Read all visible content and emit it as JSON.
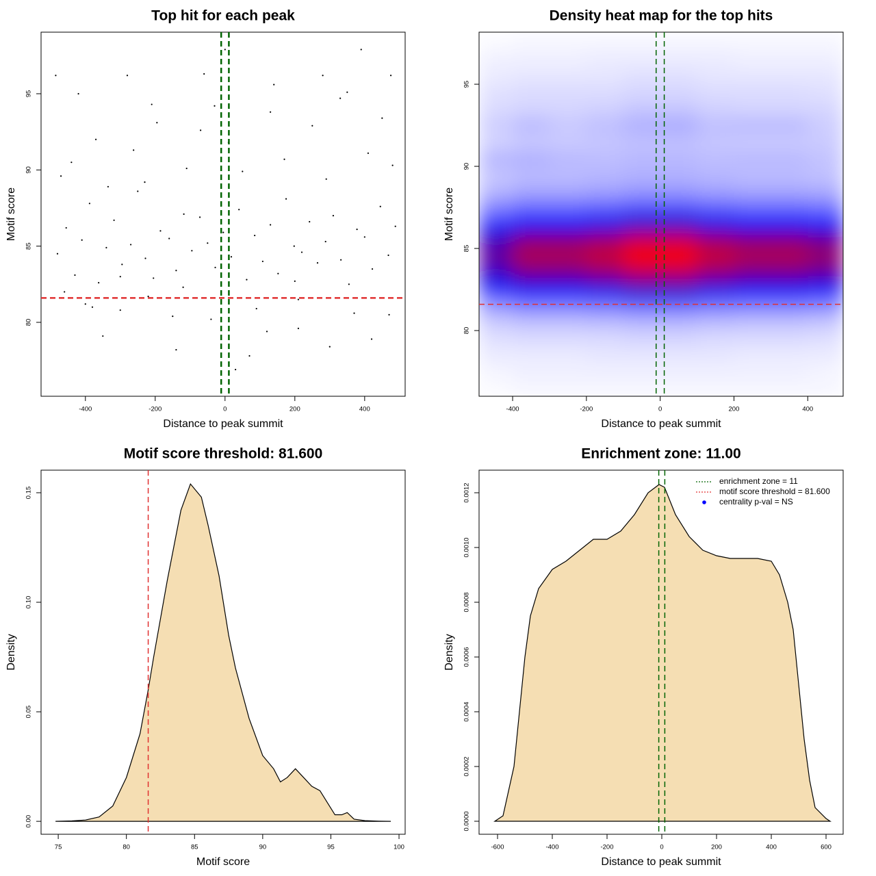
{
  "chart_data": [
    {
      "type": "scatter",
      "title": "Top hit for each peak",
      "xlabel": "Distance to peak summit",
      "ylabel": "Motif score",
      "xlim": [
        -527,
        516
      ],
      "ylim": [
        75.15,
        99.04
      ],
      "xticks": [
        -400,
        -200,
        0,
        200,
        400
      ],
      "yticks": [
        80,
        85,
        90,
        95
      ],
      "color": "#000000",
      "x": [
        -480,
        -455,
        -430,
        -410,
        -388,
        -362,
        -340,
        -318,
        -295,
        -270,
        -250,
        -228,
        -205,
        -185,
        -160,
        -140,
        -118,
        -95,
        -72,
        -50,
        -28,
        -5,
        18,
        40,
        62,
        85,
        108,
        130,
        152,
        175,
        198,
        220,
        242,
        265,
        288,
        310,
        332,
        355,
        378,
        400,
        422,
        445,
        468,
        488,
        -470,
        -440,
        -400,
        -370,
        -335,
        -300,
        -262,
        -230,
        -195,
        -150,
        -110,
        -70,
        -30,
        10,
        50,
        90,
        130,
        170,
        210,
        250,
        290,
        330,
        370,
        410,
        450,
        480,
        -485,
        -420,
        -350,
        -280,
        -210,
        -140,
        -60,
        0,
        70,
        140,
        210,
        280,
        350,
        420,
        475,
        -460,
        -380,
        -300,
        -220,
        -120,
        -40,
        30,
        120,
        200,
        300,
        390,
        470
      ],
      "values": [
        84.5,
        86.2,
        83.1,
        85.4,
        87.8,
        82.6,
        84.9,
        86.7,
        83.8,
        85.1,
        88.6,
        84.2,
        82.9,
        86.0,
        85.5,
        83.4,
        87.1,
        84.7,
        86.9,
        85.2,
        83.6,
        85.9,
        84.3,
        87.4,
        82.8,
        85.7,
        84.0,
        86.4,
        83.2,
        88.1,
        85.0,
        84.6,
        86.6,
        83.9,
        85.3,
        87.0,
        84.1,
        82.5,
        86.1,
        85.6,
        83.5,
        87.6,
        84.4,
        86.3,
        89.6,
        90.5,
        81.2,
        92.0,
        88.9,
        80.8,
        91.3,
        89.2,
        93.1,
        80.4,
        90.1,
        92.6,
        94.2,
        91.8,
        89.9,
        80.9,
        93.8,
        90.7,
        81.5,
        92.9,
        89.4,
        94.7,
        80.6,
        91.1,
        93.4,
        90.3,
        96.2,
        95.0,
        79.1,
        96.2,
        94.3,
        78.2,
        96.3,
        97.9,
        77.8,
        95.6,
        79.6,
        96.2,
        95.1,
        78.9,
        96.2,
        82.0,
        81.0,
        83.0,
        81.7,
        82.3,
        80.2,
        76.9,
        79.4,
        82.7,
        78.4,
        97.9,
        80.5
      ],
      "hlines": [
        {
          "value": 81.6,
          "color": "#e03030"
        }
      ],
      "vlines": [
        {
          "value": -11,
          "color": "#006400"
        },
        {
          "value": 11,
          "color": "#006400"
        }
      ]
    },
    {
      "type": "heatmap",
      "title": "Density heat map for the top hits",
      "xlabel": "Distance to peak summit",
      "ylabel": "Motif score",
      "xlim": [
        -491,
        496
      ],
      "ylim": [
        76,
        98.17
      ],
      "xticks": [
        -400,
        -200,
        0,
        200,
        400
      ],
      "yticks": [
        80,
        85,
        90,
        95
      ],
      "colors": [
        "#ffffff",
        "#0000ff",
        "#ff0000"
      ],
      "x_bins": [
        -491,
        -400,
        -300,
        -200,
        -100,
        0,
        100,
        200,
        300,
        400,
        496
      ],
      "y_bins": [
        76,
        77,
        78,
        79,
        80,
        81,
        82,
        83,
        84,
        85,
        86,
        87,
        88,
        89,
        90,
        91,
        92,
        93,
        94,
        95,
        96,
        97,
        98
      ],
      "z": [
        [
          0.01,
          0.02,
          0.02,
          0.02,
          0.02,
          0.02,
          0.02,
          0.02,
          0.02,
          0.02
        ],
        [
          0.02,
          0.03,
          0.03,
          0.03,
          0.03,
          0.03,
          0.03,
          0.03,
          0.03,
          0.02
        ],
        [
          0.04,
          0.04,
          0.04,
          0.05,
          0.05,
          0.05,
          0.05,
          0.04,
          0.04,
          0.04
        ],
        [
          0.06,
          0.07,
          0.07,
          0.07,
          0.08,
          0.08,
          0.07,
          0.07,
          0.07,
          0.06
        ],
        [
          0.1,
          0.12,
          0.12,
          0.13,
          0.14,
          0.14,
          0.13,
          0.12,
          0.12,
          0.11
        ],
        [
          0.21,
          0.26,
          0.26,
          0.27,
          0.3,
          0.3,
          0.27,
          0.26,
          0.26,
          0.24
        ],
        [
          0.42,
          0.51,
          0.51,
          0.54,
          0.6,
          0.6,
          0.54,
          0.51,
          0.51,
          0.48
        ],
        [
          0.6,
          0.72,
          0.72,
          0.77,
          0.85,
          0.85,
          0.77,
          0.72,
          0.72,
          0.68
        ],
        [
          0.7,
          0.85,
          0.85,
          0.9,
          1.0,
          1.0,
          0.9,
          0.85,
          0.85,
          0.8
        ],
        [
          0.63,
          0.77,
          0.77,
          0.81,
          0.9,
          0.9,
          0.81,
          0.77,
          0.77,
          0.72
        ],
        [
          0.42,
          0.51,
          0.51,
          0.54,
          0.6,
          0.6,
          0.54,
          0.51,
          0.51,
          0.48
        ],
        [
          0.25,
          0.3,
          0.3,
          0.32,
          0.35,
          0.35,
          0.32,
          0.3,
          0.3,
          0.28
        ],
        [
          0.14,
          0.17,
          0.17,
          0.18,
          0.2,
          0.2,
          0.18,
          0.17,
          0.17,
          0.16
        ],
        [
          0.11,
          0.13,
          0.13,
          0.14,
          0.15,
          0.15,
          0.14,
          0.13,
          0.13,
          0.12
        ],
        [
          0.15,
          0.16,
          0.14,
          0.13,
          0.14,
          0.14,
          0.13,
          0.14,
          0.14,
          0.12
        ],
        [
          0.08,
          0.1,
          0.1,
          0.11,
          0.12,
          0.12,
          0.11,
          0.1,
          0.1,
          0.1
        ],
        [
          0.1,
          0.14,
          0.11,
          0.13,
          0.16,
          0.17,
          0.13,
          0.14,
          0.14,
          0.1
        ],
        [
          0.07,
          0.08,
          0.08,
          0.09,
          0.11,
          0.11,
          0.09,
          0.08,
          0.08,
          0.08
        ],
        [
          0.06,
          0.07,
          0.07,
          0.07,
          0.08,
          0.08,
          0.07,
          0.07,
          0.07,
          0.06
        ],
        [
          0.04,
          0.05,
          0.05,
          0.05,
          0.06,
          0.06,
          0.05,
          0.05,
          0.05,
          0.05
        ],
        [
          0.03,
          0.03,
          0.03,
          0.04,
          0.04,
          0.04,
          0.04,
          0.03,
          0.03,
          0.03
        ],
        [
          0.01,
          0.02,
          0.02,
          0.02,
          0.02,
          0.02,
          0.02,
          0.02,
          0.02,
          0.02
        ]
      ],
      "hlines": [
        {
          "value": 81.6,
          "color": "#e03030"
        }
      ],
      "vlines": [
        {
          "value": -11,
          "color": "#006400"
        },
        {
          "value": 11,
          "color": "#006400"
        }
      ]
    },
    {
      "type": "area",
      "title": "Motif score threshold: 81.600",
      "xlabel": "Motif score",
      "ylabel": "Density",
      "xlim": [
        73.74,
        100.45
      ],
      "ylim": [
        -0.0059,
        0.1603
      ],
      "xticks": [
        75,
        80,
        85,
        90,
        95,
        100
      ],
      "yticks": [
        {
          "value": 0,
          "label": "0.00"
        },
        {
          "value": 0.05,
          "label": "0.05"
        },
        {
          "value": 0.1,
          "label": "0.10"
        },
        {
          "value": 0.15,
          "label": "0.15"
        }
      ],
      "color": "#f5deb3",
      "x": [
        74.8,
        76,
        77,
        78,
        79,
        80,
        81,
        81.6,
        82,
        83,
        84,
        84.7,
        85.5,
        86,
        86.8,
        87.5,
        88,
        89,
        90,
        90.8,
        91.3,
        91.8,
        92.4,
        93,
        93.6,
        94.2,
        94.8,
        95.3,
        95.8,
        96.2,
        96.7,
        97.5,
        98.5,
        99.4
      ],
      "values": [
        0,
        0.0002,
        0.0006,
        0.002,
        0.007,
        0.02,
        0.04,
        0.06,
        0.075,
        0.11,
        0.142,
        0.154,
        0.148,
        0.135,
        0.112,
        0.085,
        0.07,
        0.047,
        0.03,
        0.024,
        0.018,
        0.02,
        0.024,
        0.02,
        0.016,
        0.014,
        0.008,
        0.003,
        0.003,
        0.004,
        0.001,
        0.0003,
        0.0001,
        0
      ],
      "vlines": [
        {
          "value": 81.6,
          "color": "#e03030"
        }
      ]
    },
    {
      "type": "area",
      "title": "Enrichment zone: 11.00",
      "xlabel": "Distance to peak summit",
      "ylabel": "Density",
      "xlim": [
        -667.5,
        662.5
      ],
      "ylim": [
        -4.75e-05,
        0.0012825
      ],
      "xticks": [
        -600,
        -400,
        -200,
        0,
        200,
        400,
        600
      ],
      "yticks": [
        {
          "value": 0,
          "label": "0.0000"
        },
        {
          "value": 0.0002,
          "label": "0.0002"
        },
        {
          "value": 0.0004,
          "label": "0.0004"
        },
        {
          "value": 0.0006,
          "label": "0.0006"
        },
        {
          "value": 0.0008,
          "label": "0.0008"
        },
        {
          "value": 0.001,
          "label": "0.0010"
        },
        {
          "value": 0.0012,
          "label": "0.0012"
        }
      ],
      "color": "#f5deb3",
      "x": [
        -610,
        -580,
        -540,
        -520,
        -500,
        -480,
        -450,
        -400,
        -350,
        -300,
        -250,
        -200,
        -150,
        -100,
        -50,
        -10,
        10,
        50,
        100,
        150,
        200,
        250,
        300,
        350,
        400,
        430,
        460,
        480,
        500,
        520,
        540,
        560,
        600,
        615
      ],
      "values": [
        0,
        2e-05,
        0.0002,
        0.0004,
        0.0006,
        0.00075,
        0.00085,
        0.00092,
        0.00095,
        0.00099,
        0.00103,
        0.00103,
        0.00106,
        0.00112,
        0.0012,
        0.00123,
        0.00122,
        0.00112,
        0.00104,
        0.00099,
        0.00097,
        0.00096,
        0.00096,
        0.00096,
        0.00095,
        0.0009,
        0.0008,
        0.0007,
        0.0005,
        0.0003,
        0.00015,
        5e-05,
        1e-05,
        0
      ],
      "vlines": [
        {
          "value": -11,
          "color": "#006400"
        },
        {
          "value": 11,
          "color": "#006400"
        }
      ],
      "legend": [
        {
          "label": "enrichment zone = 11",
          "color": "#006400",
          "marker": "line"
        },
        {
          "label": "motif score threshold = 81.600",
          "color": "#e03030",
          "marker": "line"
        },
        {
          "label": "centrality p-val = NS",
          "color": "#0000ff",
          "marker": "point"
        }
      ]
    }
  ]
}
